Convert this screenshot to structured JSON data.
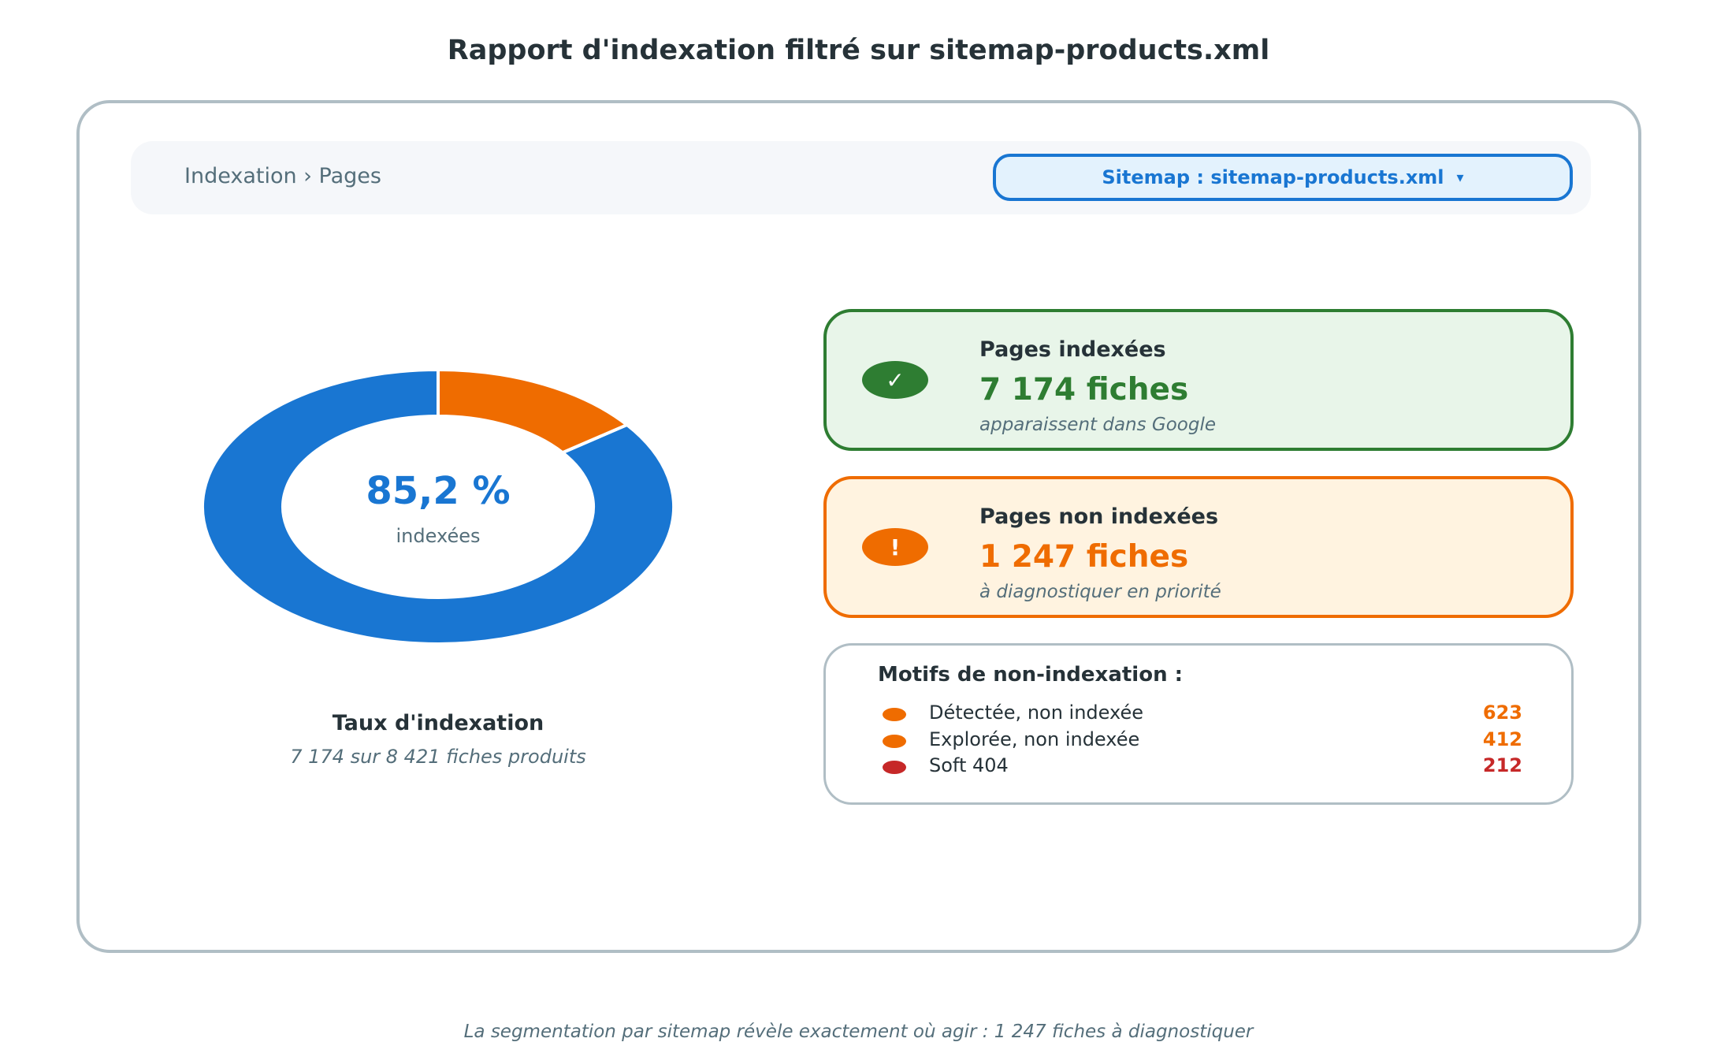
{
  "title": "Rapport d'indexation filtré sur sitemap-products.xml",
  "breadcrumb": "Indexation › Pages",
  "sitemap_filter": {
    "label": "Sitemap : sitemap-products.xml",
    "caret": "▾"
  },
  "donut": {
    "value_label": "85,2 %",
    "sub_label": "indexées",
    "title": "Taux d'indexation",
    "subtitle": "7 174 sur 8 421 fiches produits",
    "indexed_fraction": 0.852,
    "colors": {
      "indexed": "#1976d2",
      "not_indexed": "#ef6c00"
    }
  },
  "cards": {
    "indexed": {
      "icon": "✓",
      "heading": "Pages indexées",
      "value": "7 174 fiches",
      "note": "apparaissent dans Google"
    },
    "not_indexed": {
      "icon": "!",
      "heading": "Pages non indexées",
      "value": "1 247 fiches",
      "note": "à diagnostiquer en priorité"
    }
  },
  "reasons": {
    "title": "Motifs de non-indexation :",
    "items": [
      {
        "label": "Détectée, non indexée",
        "count": "623",
        "color": "#ef6c00"
      },
      {
        "label": "Explorée, non indexée",
        "count": "412",
        "color": "#ef6c00"
      },
      {
        "label": "Soft 404",
        "count": "212",
        "color": "#c62828"
      }
    ]
  },
  "footnote": "La segmentation par sitemap révèle exactement où agir : 1 247 fiches à diagnostiquer"
}
